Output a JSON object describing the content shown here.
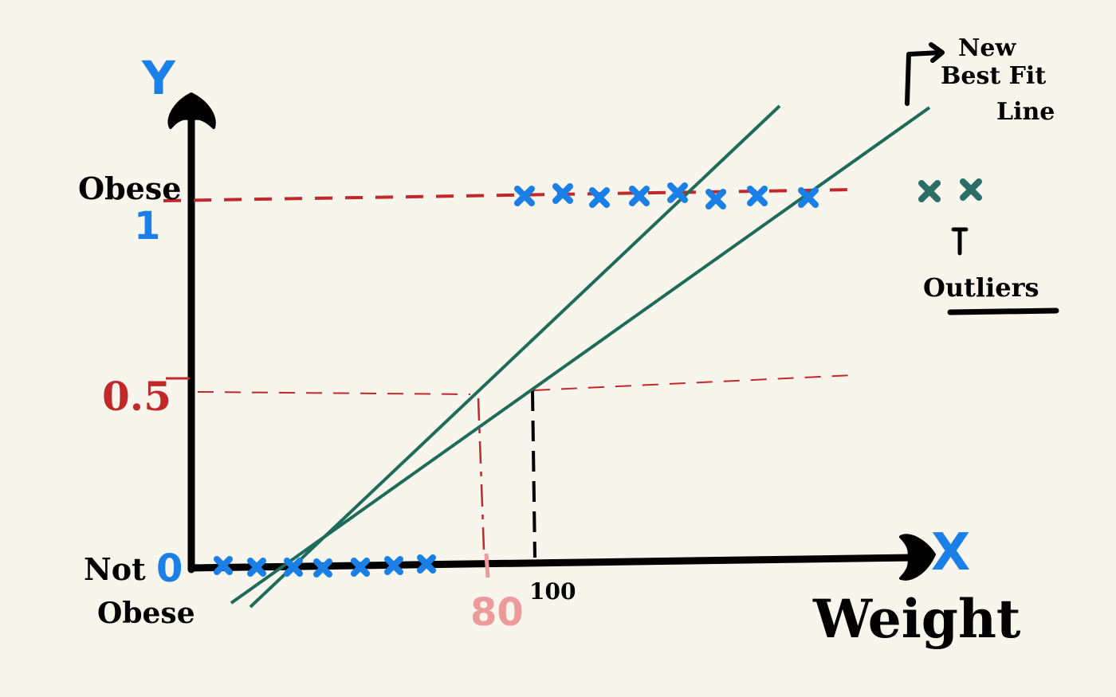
{
  "diagram": {
    "y_axis_label": "Y",
    "x_axis_label": "X",
    "x_axis_title": "Weight",
    "y_top_category": "Obese",
    "y_top_value": "1",
    "y_bottom_category_line1": "Not",
    "y_bottom_value": "0",
    "y_bottom_category_line2": "Obese",
    "threshold_label": "0.5",
    "x_tick_80": "80",
    "x_tick_100": "100",
    "new_line_label_line1": "New",
    "new_line_label_line2": "Best Fit",
    "new_line_label_line3": "Line",
    "outliers_label": "Outliers"
  },
  "colors": {
    "background": "#f8f6ec",
    "axis": "#000000",
    "data_marker": "#1a7fe6",
    "fit_line": "#1f6b5a",
    "threshold": "#c0282a",
    "tick_80": "#ec9a9a",
    "outlier_marker": "#2b6e66"
  }
}
